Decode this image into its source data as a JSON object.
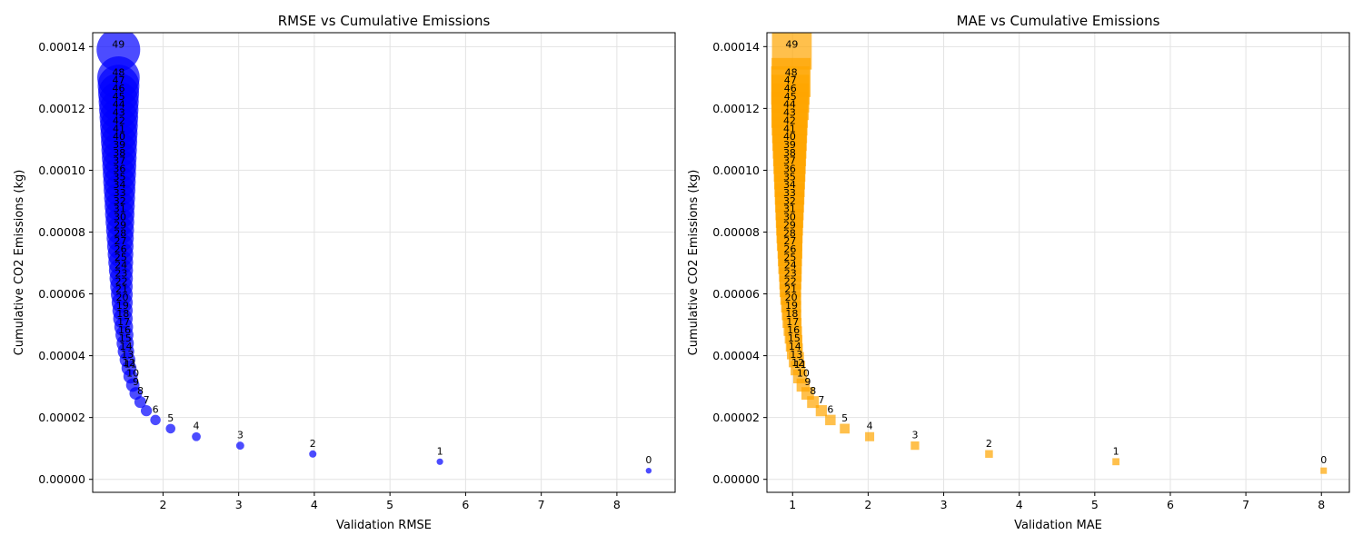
{
  "chart_data": [
    {
      "type": "scatter",
      "title": "RMSE vs Cumulative Emissions",
      "xlabel": "Validation RMSE",
      "ylabel": "Cumulative CO2 Emissions (kg)",
      "xlim": [
        1.07,
        8.77
      ],
      "ylim": [
        -4.2e-06,
        0.0001445
      ],
      "xticks": [
        2,
        3,
        4,
        5,
        6,
        7,
        8
      ],
      "xtick_labels": [
        "2",
        "3",
        "4",
        "5",
        "6",
        "7",
        "8"
      ],
      "yticks": [
        0,
        2e-05,
        4e-05,
        6e-05,
        8e-05,
        0.0001,
        0.00012,
        0.00014
      ],
      "ytick_labels": [
        "0.00000",
        "0.00002",
        "0.00004",
        "0.00006",
        "0.00008",
        "0.00010",
        "0.00012",
        "0.00014"
      ],
      "grid": true,
      "marker": "circle",
      "color": "#0000ff",
      "point_labels": [
        "0",
        "1",
        "2",
        "3",
        "4",
        "5",
        "6",
        "7",
        "8",
        "9",
        "10",
        "11",
        "12",
        "13",
        "14",
        "15",
        "16",
        "17",
        "18",
        "19",
        "20",
        "21",
        "22",
        "23",
        "24",
        "25",
        "26",
        "27",
        "28",
        "29",
        "30",
        "31",
        "32",
        "33",
        "34",
        "35",
        "36",
        "37",
        "38",
        "39",
        "40",
        "41",
        "42",
        "43",
        "44",
        "45",
        "46",
        "47",
        "48",
        "49"
      ],
      "x": [
        8.42,
        5.66,
        3.98,
        3.02,
        2.44,
        2.1,
        1.9,
        1.78,
        1.7,
        1.64,
        1.6,
        1.57,
        1.55,
        1.53,
        1.51,
        1.5,
        1.49,
        1.48,
        1.47,
        1.465,
        1.46,
        1.455,
        1.45,
        1.447,
        1.444,
        1.441,
        1.438,
        1.436,
        1.434,
        1.432,
        1.43,
        1.428,
        1.427,
        1.426,
        1.425,
        1.424,
        1.423,
        1.422,
        1.421,
        1.42,
        1.419,
        1.418,
        1.417,
        1.416,
        1.415,
        1.414,
        1.413,
        1.412,
        1.411,
        1.41
      ],
      "y": [
        2.8e-06,
        5.7e-06,
        8.2e-06,
        1.09e-05,
        1.38e-05,
        1.64e-05,
        1.92e-05,
        2.22e-05,
        2.5e-05,
        2.78e-05,
        3.05e-05,
        3.33e-05,
        3.6e-05,
        3.87e-05,
        4.14e-05,
        4.4e-05,
        4.67e-05,
        4.93e-05,
        5.2e-05,
        5.46e-05,
        5.72e-05,
        5.98e-05,
        6.24e-05,
        6.5e-05,
        6.76e-05,
        7.02e-05,
        7.28e-05,
        7.54e-05,
        7.8e-05,
        8.06e-05,
        8.32e-05,
        8.58e-05,
        8.84e-05,
        9.1e-05,
        9.36e-05,
        9.62e-05,
        9.88e-05,
        0.0001014,
        0.000104,
        0.0001066,
        0.0001092,
        0.0001118,
        0.0001144,
        0.000117,
        0.0001196,
        0.0001222,
        0.0001248,
        0.0001274,
        0.00013,
        0.000139
      ]
    },
    {
      "type": "scatter",
      "title": "MAE vs Cumulative Emissions",
      "xlabel": "Validation MAE",
      "ylabel": "Cumulative CO2 Emissions (kg)",
      "xlim": [
        0.66,
        8.37
      ],
      "ylim": [
        -4.2e-06,
        0.0001445
      ],
      "xticks": [
        1,
        2,
        3,
        4,
        5,
        6,
        7,
        8
      ],
      "xtick_labels": [
        "1",
        "2",
        "3",
        "4",
        "5",
        "6",
        "7",
        "8"
      ],
      "yticks": [
        0,
        2e-05,
        4e-05,
        6e-05,
        8e-05,
        0.0001,
        0.00012,
        0.00014
      ],
      "ytick_labels": [
        "0.00000",
        "0.00002",
        "0.00004",
        "0.00006",
        "0.00008",
        "0.00010",
        "0.00012",
        "0.00014"
      ],
      "grid": true,
      "marker": "square",
      "color": "#ffa500",
      "point_labels": [
        "0",
        "1",
        "2",
        "3",
        "4",
        "5",
        "6",
        "7",
        "8",
        "9",
        "10",
        "11",
        "12",
        "13",
        "14",
        "15",
        "16",
        "17",
        "18",
        "19",
        "20",
        "21",
        "22",
        "23",
        "24",
        "25",
        "26",
        "27",
        "28",
        "29",
        "30",
        "31",
        "32",
        "33",
        "34",
        "35",
        "36",
        "37",
        "38",
        "39",
        "40",
        "41",
        "42",
        "43",
        "44",
        "45",
        "46",
        "47",
        "48",
        "49"
      ],
      "x": [
        8.03,
        5.28,
        3.6,
        2.62,
        2.02,
        1.69,
        1.5,
        1.38,
        1.27,
        1.2,
        1.14,
        1.1,
        1.07,
        1.05,
        1.03,
        1.02,
        1.01,
        1.0,
        0.99,
        0.985,
        0.98,
        0.975,
        0.97,
        0.97,
        0.97,
        0.965,
        0.965,
        0.965,
        0.96,
        0.96,
        0.96,
        0.96,
        0.96,
        0.96,
        0.96,
        0.96,
        0.96,
        0.96,
        0.96,
        0.96,
        0.96,
        0.96,
        0.96,
        0.96,
        0.96,
        0.97,
        0.97,
        0.97,
        0.98,
        0.99
      ],
      "y": [
        2.8e-06,
        5.7e-06,
        8.2e-06,
        1.09e-05,
        1.38e-05,
        1.64e-05,
        1.92e-05,
        2.22e-05,
        2.5e-05,
        2.78e-05,
        3.05e-05,
        3.33e-05,
        3.6e-05,
        3.87e-05,
        4.14e-05,
        4.4e-05,
        4.67e-05,
        4.93e-05,
        5.2e-05,
        5.46e-05,
        5.72e-05,
        5.98e-05,
        6.24e-05,
        6.5e-05,
        6.76e-05,
        7.02e-05,
        7.28e-05,
        7.54e-05,
        7.8e-05,
        8.06e-05,
        8.32e-05,
        8.58e-05,
        8.84e-05,
        9.1e-05,
        9.36e-05,
        9.62e-05,
        9.88e-05,
        0.0001014,
        0.000104,
        0.0001066,
        0.0001092,
        0.0001118,
        0.0001144,
        0.000117,
        0.0001196,
        0.0001222,
        0.0001248,
        0.0001274,
        0.00013,
        0.000139
      ]
    }
  ]
}
